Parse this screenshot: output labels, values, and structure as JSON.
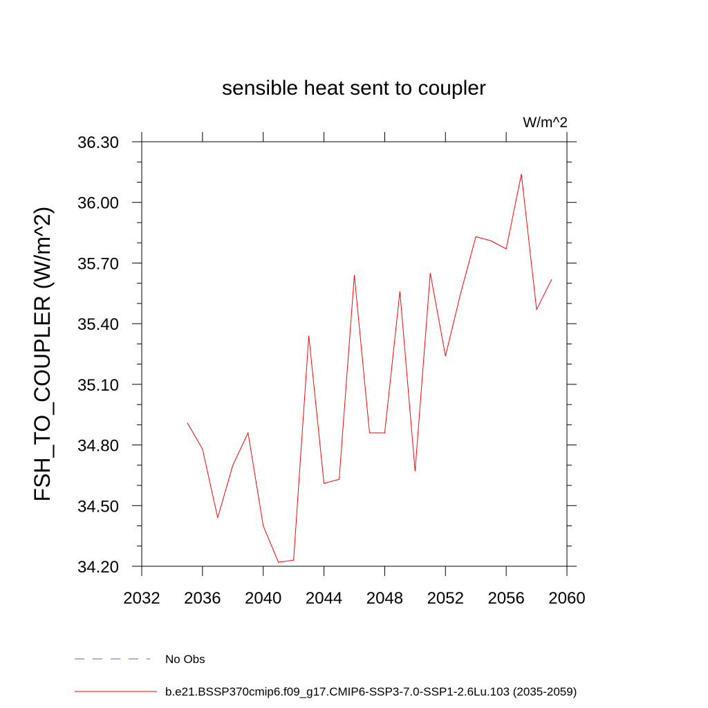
{
  "chart_data": {
    "type": "line",
    "title": "sensible heat sent to coupler",
    "units_label": "W/m^2",
    "ylabel": "FSH_TO_COUPLER  (W/m^2)",
    "xlabel": "",
    "xlim": [
      2032,
      2060
    ],
    "ylim": [
      34.2,
      36.3
    ],
    "x_ticks": [
      2032,
      2036,
      2040,
      2044,
      2048,
      2052,
      2056,
      2060
    ],
    "x_tick_labels": [
      "2032",
      "2036",
      "2040",
      "2044",
      "2048",
      "2052",
      "2056",
      "2060"
    ],
    "y_ticks": [
      34.2,
      34.5,
      34.8,
      35.1,
      35.4,
      35.7,
      36.0,
      36.3
    ],
    "y_tick_labels": [
      "34.20",
      "34.50",
      "34.80",
      "35.10",
      "35.40",
      "35.70",
      "36.00",
      "36.30"
    ],
    "grid": false,
    "legend_position": "bottom-left",
    "series": [
      {
        "name": "No Obs",
        "color": "#6a5acd",
        "style": "dashed",
        "x": [],
        "y": []
      },
      {
        "name": "b.e21.BSSP370cmip6.f09_g17.CMIP6-SSP3-7.0-SSP1-2.6Lu.103 (2035-2059)",
        "color": "#ff0000",
        "style": "solid",
        "x": [
          2035,
          2036,
          2037,
          2038,
          2039,
          2040,
          2041,
          2042,
          2043,
          2044,
          2045,
          2046,
          2047,
          2048,
          2049,
          2050,
          2051,
          2052,
          2053,
          2054,
          2055,
          2056,
          2057,
          2058,
          2059
        ],
        "y": [
          34.91,
          34.78,
          34.44,
          34.7,
          34.86,
          34.4,
          34.22,
          34.23,
          35.34,
          34.61,
          34.63,
          35.64,
          34.86,
          34.86,
          35.56,
          34.67,
          35.65,
          35.24,
          35.55,
          35.83,
          35.81,
          35.77,
          36.14,
          35.47,
          35.62
        ]
      }
    ]
  }
}
